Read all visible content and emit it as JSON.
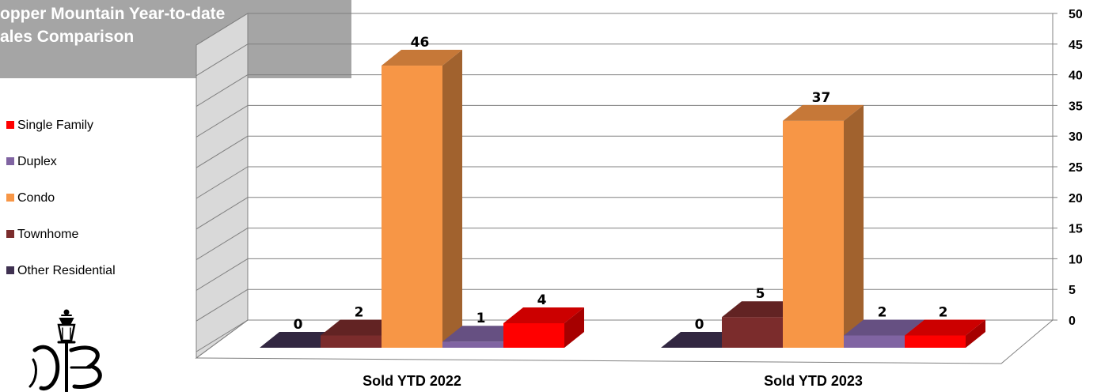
{
  "chart_data": {
    "type": "bar",
    "title_lines": [
      "opper Mountain Year-to-date",
      "ales Comparison"
    ],
    "categories": [
      "Sold YTD 2022",
      "Sold YTD 2023"
    ],
    "series": [
      {
        "name": "Other Residential",
        "values": [
          0,
          0
        ],
        "color": "#3f3151"
      },
      {
        "name": "Townhome",
        "values": [
          2,
          5
        ],
        "color": "#7b2c2c"
      },
      {
        "name": "Condo",
        "values": [
          46,
          37
        ],
        "color": "#f79646"
      },
      {
        "name": "Duplex",
        "values": [
          1,
          2
        ],
        "color": "#8064a2"
      },
      {
        "name": "Single Family",
        "values": [
          4,
          2
        ],
        "color": "#ff0000"
      }
    ],
    "legend_order": [
      "Single Family",
      "Duplex",
      "Condo",
      "Townhome",
      "Other Residential"
    ],
    "y_ticks": [
      "0",
      "5",
      "10",
      "15",
      "20",
      "25",
      "30",
      "35",
      "40",
      "45",
      "50"
    ],
    "ylim": [
      0,
      50
    ],
    "y_axis_side": "right",
    "grid": true,
    "legend_position": "left"
  }
}
